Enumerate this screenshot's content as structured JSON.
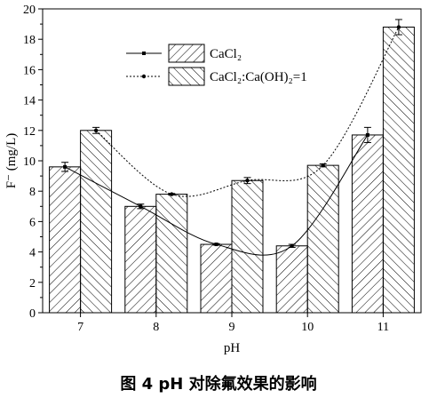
{
  "caption": "图 4 pH 对除氟效果的影响",
  "chart_data": {
    "type": "bar",
    "xlabel": "pH",
    "ylabel": "F⁻ (mg/L)",
    "categories": [
      "7",
      "8",
      "9",
      "10",
      "11"
    ],
    "ylim": [
      0,
      20
    ],
    "yticks": [
      "0",
      "2",
      "4",
      "6",
      "8",
      "10",
      "12",
      "14",
      "16",
      "18",
      "20"
    ],
    "legend_position": "top-center",
    "series": [
      {
        "name": "CaCl₂",
        "values": [
          9.6,
          7.0,
          4.5,
          4.4,
          11.7
        ],
        "errors": [
          0.3,
          0.15,
          0.05,
          0.1,
          0.5
        ],
        "hatch": "forward",
        "line_style": "solid",
        "marker": "square",
        "color": "#000000"
      },
      {
        "name": "CaCl₂:Ca(OH)₂=1",
        "values": [
          12.0,
          7.8,
          8.7,
          9.7,
          18.8
        ],
        "errors": [
          0.2,
          0.05,
          0.2,
          0.1,
          0.5
        ],
        "hatch": "backward",
        "line_style": "dotted",
        "marker": "circle",
        "color": "#000000"
      }
    ]
  }
}
